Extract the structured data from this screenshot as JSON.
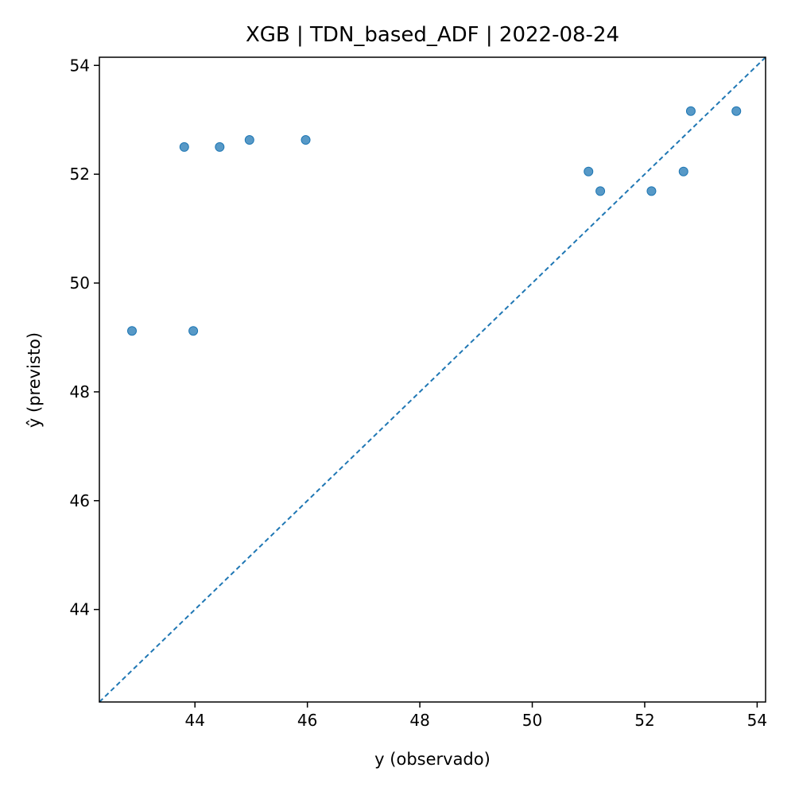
{
  "chart_data": {
    "type": "scatter",
    "title": "XGB | TDN_based_ADF | 2022-08-24",
    "xlabel": "y (observado)",
    "ylabel": "ŷ (previsto)",
    "xlim": [
      42.3,
      54.15
    ],
    "ylim": [
      42.3,
      54.15
    ],
    "x_ticks": [
      44,
      46,
      48,
      50,
      52,
      54
    ],
    "y_ticks": [
      44,
      46,
      48,
      50,
      52,
      54
    ],
    "grid": false,
    "reference_line": "y = x (dashed)",
    "colors": {
      "points": "#1f77b4",
      "reference_line": "#1f77b4"
    },
    "points": [
      {
        "x": 42.88,
        "y": 49.12
      },
      {
        "x": 43.81,
        "y": 52.5
      },
      {
        "x": 43.97,
        "y": 49.12
      },
      {
        "x": 44.44,
        "y": 52.5
      },
      {
        "x": 44.97,
        "y": 52.63
      },
      {
        "x": 45.97,
        "y": 52.63
      },
      {
        "x": 51.0,
        "y": 52.05
      },
      {
        "x": 51.21,
        "y": 51.69
      },
      {
        "x": 52.12,
        "y": 51.69
      },
      {
        "x": 52.69,
        "y": 52.05
      },
      {
        "x": 52.82,
        "y": 53.16
      },
      {
        "x": 53.63,
        "y": 53.16
      }
    ]
  }
}
